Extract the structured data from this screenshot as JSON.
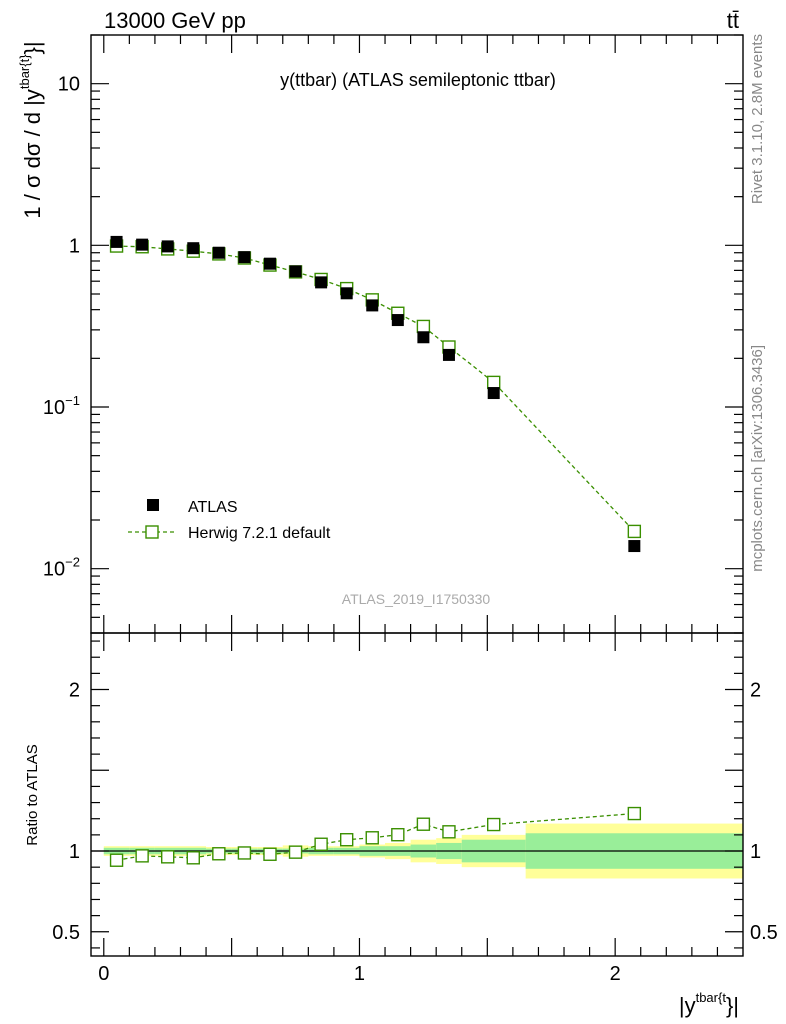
{
  "chart_data": [
    {
      "type": "scatter",
      "panel": "main",
      "title": "y(ttbar) (ATLAS semileptonic ttbar)",
      "header_left": "13000 GeV pp",
      "header_right": "tt̄",
      "ylabel_main": "1 / σ dσ / d |y",
      "ylabel_sup": "tbar{t}",
      "ylabel_close": "}|",
      "yscale": "log",
      "ylim": [
        0.004,
        20
      ],
      "xlim": [
        -0.05,
        2.5
      ],
      "y_ticks": [
        {
          "value": 10,
          "label": "10"
        },
        {
          "value": 1,
          "label": "1"
        },
        {
          "value": 0.1,
          "base": "10",
          "exp": "−1"
        },
        {
          "value": 0.01,
          "base": "10",
          "exp": "−2"
        }
      ],
      "watermark": "ATLAS_2019_I1750330",
      "side_text_top": "Rivet 3.1.10,  2.8M events",
      "side_text_bottom": "mcplots.cern.ch [arXiv:1306.3436]",
      "bin_edges": [
        0.0,
        0.1,
        0.2,
        0.3,
        0.4,
        0.5,
        0.6,
        0.7,
        0.8,
        0.9,
        1.0,
        1.1,
        1.2,
        1.3,
        1.4,
        1.65,
        2.5
      ],
      "series": [
        {
          "name": "ATLAS",
          "color": "#000000",
          "marker": "filled-square",
          "x": [
            0.05,
            0.15,
            0.25,
            0.35,
            0.45,
            0.55,
            0.65,
            0.75,
            0.85,
            0.95,
            1.05,
            1.15,
            1.25,
            1.35,
            1.525,
            2.075
          ],
          "y": [
            1.05,
            1.01,
            0.985,
            0.96,
            0.9,
            0.845,
            0.77,
            0.69,
            0.59,
            0.505,
            0.425,
            0.345,
            0.27,
            0.21,
            0.122,
            0.0138
          ]
        },
        {
          "name": "Herwig 7.2.1 default",
          "color": "#3a8f00",
          "marker": "open-square",
          "linestyle": "dashed",
          "x": [
            0.05,
            0.15,
            0.25,
            0.35,
            0.45,
            0.55,
            0.65,
            0.75,
            0.85,
            0.95,
            1.05,
            1.15,
            1.25,
            1.35,
            1.525,
            2.075
          ],
          "y": [
            0.99,
            0.98,
            0.95,
            0.92,
            0.885,
            0.835,
            0.755,
            0.685,
            0.615,
            0.54,
            0.46,
            0.38,
            0.315,
            0.235,
            0.142,
            0.017
          ]
        }
      ]
    },
    {
      "type": "scatter",
      "panel": "ratio",
      "ylabel": "Ratio to ATLAS",
      "xlabel_main": "|y",
      "xlabel_sup": "tbar{t",
      "xlabel_close": "}|",
      "ylim": [
        0.35,
        2.35
      ],
      "xlim": [
        -0.05,
        2.5
      ],
      "y_ticks": [
        {
          "value": 0.5,
          "label": "0.5"
        },
        {
          "value": 1,
          "label": "1"
        },
        {
          "value": 2,
          "label": "2"
        }
      ],
      "x_ticks": [
        {
          "value": 0,
          "label": "0"
        },
        {
          "value": 1,
          "label": "1"
        },
        {
          "value": 2,
          "label": "2"
        }
      ],
      "band_stat": [
        0.02,
        0.02,
        0.02,
        0.02,
        0.015,
        0.015,
        0.015,
        0.015,
        0.02,
        0.02,
        0.03,
        0.03,
        0.04,
        0.05,
        0.07,
        0.11
      ],
      "band_total": [
        0.03,
        0.03,
        0.03,
        0.03,
        0.025,
        0.025,
        0.025,
        0.035,
        0.03,
        0.03,
        0.04,
        0.05,
        0.07,
        0.08,
        0.1,
        0.17
      ],
      "band_stat_color": "#99ee99",
      "band_total_color": "#ffff99",
      "ratio": {
        "name": "Herwig 7.2.1 default",
        "color": "#3a8f00",
        "x": [
          0.05,
          0.15,
          0.25,
          0.35,
          0.45,
          0.55,
          0.65,
          0.75,
          0.85,
          0.95,
          1.05,
          1.15,
          1.25,
          1.35,
          1.525,
          2.075
        ],
        "y": [
          0.943,
          0.97,
          0.964,
          0.958,
          0.983,
          0.988,
          0.98,
          0.993,
          1.042,
          1.07,
          1.082,
          1.101,
          1.166,
          1.119,
          1.164,
          1.232
        ]
      }
    }
  ]
}
